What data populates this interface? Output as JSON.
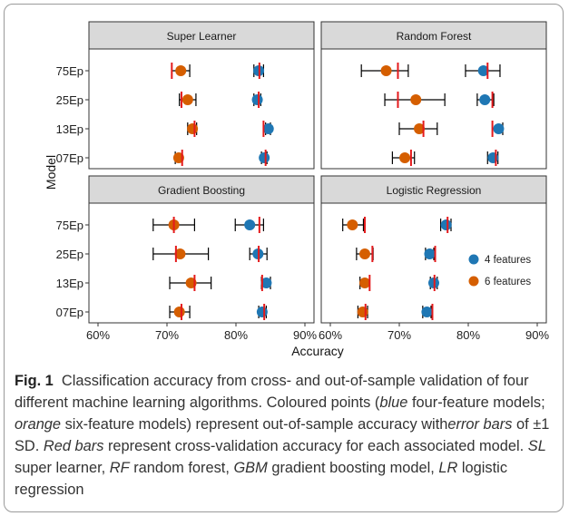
{
  "chart_data": {
    "type": "scatter",
    "xlabel": "Accuracy",
    "ylabel": "Model",
    "xlim": [
      0.6,
      0.9
    ],
    "x_ticks": [
      "60%",
      "70%",
      "80%",
      "90%"
    ],
    "categories": [
      "75Ep",
      "25Ep",
      "13Ep",
      "07Ep"
    ],
    "legend": {
      "placement": "inside bottom-right",
      "entries": [
        {
          "label": "4 features",
          "color": "#1f77b4"
        },
        {
          "label": "6 features",
          "color": "#d55e00"
        }
      ]
    },
    "colors": {
      "four": "#1f77b4",
      "six": "#d55e00",
      "cv_bar": "#e41a1c",
      "error_bar": "#000000",
      "strip": "#d9d9d9"
    },
    "panels": [
      {
        "title": "Super Learner",
        "rows": [
          {
            "model": "75Ep",
            "four": {
              "acc": 0.833,
              "lo": 0.826,
              "hi": 0.84,
              "cv": 0.834
            },
            "six": {
              "acc": 0.72,
              "lo": 0.707,
              "hi": 0.733,
              "cv": 0.707
            }
          },
          {
            "model": "25Ep",
            "four": {
              "acc": 0.831,
              "lo": 0.826,
              "hi": 0.836,
              "cv": 0.833
            },
            "six": {
              "acc": 0.73,
              "lo": 0.718,
              "hi": 0.742,
              "cv": 0.721
            }
          },
          {
            "model": "13Ep",
            "four": {
              "acc": 0.847,
              "lo": 0.843,
              "hi": 0.85,
              "cv": 0.84
            },
            "six": {
              "acc": 0.737,
              "lo": 0.73,
              "hi": 0.743,
              "cv": 0.74
            }
          },
          {
            "model": "07Ep",
            "four": {
              "acc": 0.841,
              "lo": 0.837,
              "hi": 0.845,
              "cv": 0.843
            },
            "six": {
              "acc": 0.717,
              "lo": 0.712,
              "hi": 0.722,
              "cv": 0.722
            }
          }
        ]
      },
      {
        "title": "Random Forest",
        "rows": [
          {
            "model": "75Ep",
            "four": {
              "acc": 0.822,
              "lo": 0.796,
              "hi": 0.846,
              "cv": 0.828
            },
            "six": {
              "acc": 0.681,
              "lo": 0.645,
              "hi": 0.713,
              "cv": 0.698
            }
          },
          {
            "model": "25Ep",
            "four": {
              "acc": 0.824,
              "lo": 0.813,
              "hi": 0.837,
              "cv": 0.835
            },
            "six": {
              "acc": 0.724,
              "lo": 0.679,
              "hi": 0.766,
              "cv": 0.698
            }
          },
          {
            "model": "13Ep",
            "four": {
              "acc": 0.844,
              "lo": 0.835,
              "hi": 0.85,
              "cv": 0.835
            },
            "six": {
              "acc": 0.729,
              "lo": 0.7,
              "hi": 0.755,
              "cv": 0.735
            }
          },
          {
            "model": "07Ep",
            "four": {
              "acc": 0.836,
              "lo": 0.828,
              "hi": 0.843,
              "cv": 0.84
            },
            "six": {
              "acc": 0.708,
              "lo": 0.69,
              "hi": 0.722,
              "cv": 0.717
            }
          }
        ]
      },
      {
        "title": "Gradient Boosting",
        "rows": [
          {
            "model": "75Ep",
            "four": {
              "acc": 0.82,
              "lo": 0.799,
              "hi": 0.84,
              "cv": 0.834
            },
            "six": {
              "acc": 0.71,
              "lo": 0.68,
              "hi": 0.74,
              "cv": 0.71
            }
          },
          {
            "model": "25Ep",
            "four": {
              "acc": 0.832,
              "lo": 0.82,
              "hi": 0.845,
              "cv": 0.833
            },
            "six": {
              "acc": 0.719,
              "lo": 0.68,
              "hi": 0.76,
              "cv": 0.713
            }
          },
          {
            "model": "13Ep",
            "four": {
              "acc": 0.844,
              "lo": 0.837,
              "hi": 0.85,
              "cv": 0.838
            },
            "six": {
              "acc": 0.735,
              "lo": 0.704,
              "hi": 0.764,
              "cv": 0.74
            }
          },
          {
            "model": "07Ep",
            "four": {
              "acc": 0.838,
              "lo": 0.833,
              "hi": 0.844,
              "cv": 0.841
            },
            "six": {
              "acc": 0.718,
              "lo": 0.704,
              "hi": 0.733,
              "cv": 0.721
            }
          }
        ]
      },
      {
        "title": "Logistic Regression",
        "rows": [
          {
            "model": "75Ep",
            "four": {
              "acc": 0.768,
              "lo": 0.76,
              "hi": 0.775,
              "cv": 0.77
            },
            "six": {
              "acc": 0.632,
              "lo": 0.618,
              "hi": 0.648,
              "cv": 0.65
            }
          },
          {
            "model": "25Ep",
            "four": {
              "acc": 0.744,
              "lo": 0.738,
              "hi": 0.75,
              "cv": 0.752
            },
            "six": {
              "acc": 0.65,
              "lo": 0.638,
              "hi": 0.662,
              "cv": 0.661
            }
          },
          {
            "model": "13Ep",
            "four": {
              "acc": 0.75,
              "lo": 0.745,
              "hi": 0.755,
              "cv": 0.751
            },
            "six": {
              "acc": 0.65,
              "lo": 0.643,
              "hi": 0.657,
              "cv": 0.657
            }
          },
          {
            "model": "07Ep",
            "four": {
              "acc": 0.74,
              "lo": 0.734,
              "hi": 0.746,
              "cv": 0.748
            },
            "six": {
              "acc": 0.647,
              "lo": 0.64,
              "hi": 0.654,
              "cv": 0.651
            }
          }
        ]
      }
    ]
  },
  "caption": {
    "label": "Fig. 1",
    "segments": [
      {
        "text": "Classification accuracy from cross- and out-of-sample validation of four different machine learning algorithms. Coloured points (",
        "italic": false
      },
      {
        "text": "blue",
        "italic": true
      },
      {
        "text": " four-feature models; ",
        "italic": false
      },
      {
        "text": "orange",
        "italic": true
      },
      {
        "text": " six-feature models) represent out-of-sample accuracy with",
        "italic": false
      },
      {
        "text": "error bars",
        "italic": true
      },
      {
        "text": " of ±1 SD. ",
        "italic": false
      },
      {
        "text": "Red bars",
        "italic": true
      },
      {
        "text": " represent cross-validation accuracy for each associated model. ",
        "italic": false
      },
      {
        "text": "SL",
        "italic": true
      },
      {
        "text": " super learner, ",
        "italic": false
      },
      {
        "text": "RF",
        "italic": true
      },
      {
        "text": " random forest, ",
        "italic": false
      },
      {
        "text": "GBM",
        "italic": true
      },
      {
        "text": " gradient boosting model, ",
        "italic": false
      },
      {
        "text": "LR",
        "italic": true
      },
      {
        "text": " logistic regression",
        "italic": false
      }
    ]
  }
}
